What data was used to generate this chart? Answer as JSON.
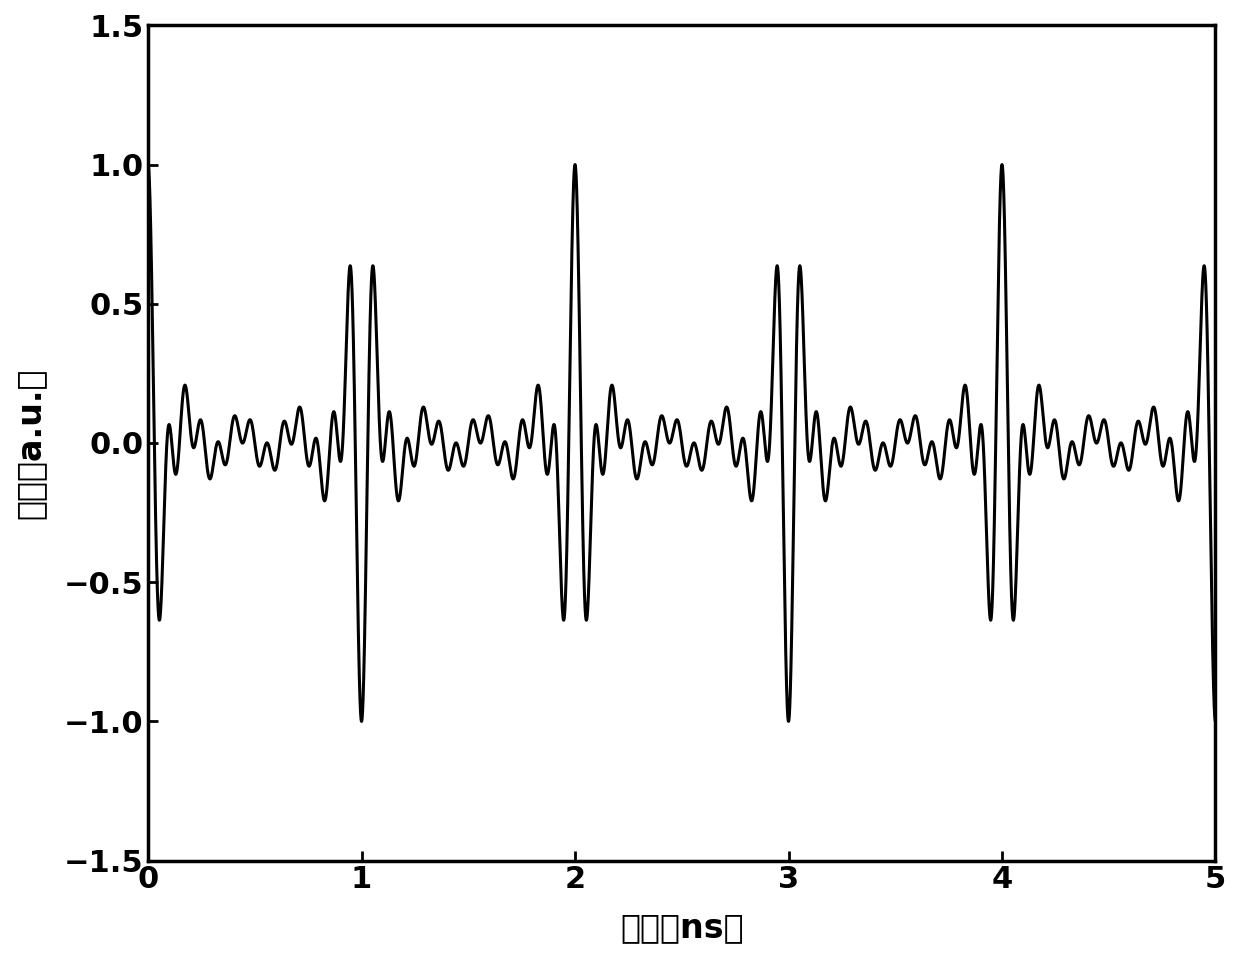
{
  "title": "",
  "xlabel": "时间（ns）",
  "ylabel": "幅度（a.u.）",
  "xlim": [
    0,
    5
  ],
  "ylim": [
    -1.5,
    1.5
  ],
  "xticks": [
    0,
    1,
    2,
    3,
    4,
    5
  ],
  "yticks": [
    -1.5,
    -1.0,
    -0.5,
    0,
    0.5,
    1.0,
    1.5
  ],
  "line_color": "#000000",
  "line_width": 2.2,
  "background_color": "#ffffff",
  "font_size_label": 24,
  "font_size_tick": 22,
  "t_start": 0,
  "t_end": 5,
  "num_points": 80000,
  "f0": 1.0,
  "n_tones": 9,
  "carrier_freq": 4.5
}
